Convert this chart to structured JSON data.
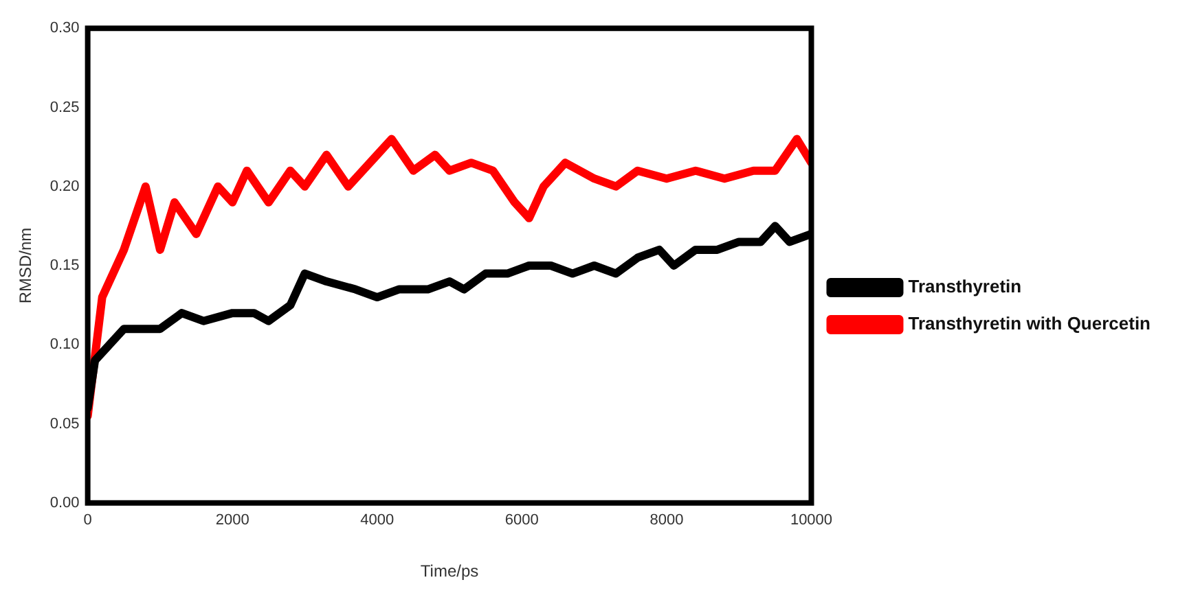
{
  "chart_data": {
    "type": "line",
    "xlabel": "Time/ps",
    "ylabel": "RMSD/nm",
    "xlim": [
      0,
      10000
    ],
    "xticks": [
      0,
      2000,
      4000,
      6000,
      8000,
      10000
    ],
    "ylim": [
      0,
      0.3
    ],
    "yticks": [
      {
        "value": 0,
        "label": "0.00"
      },
      {
        "value": 0.05,
        "label": "0.05"
      },
      {
        "value": 0.1,
        "label": "0.10"
      },
      {
        "value": 0.15,
        "label": "0.15"
      },
      {
        "value": 0.2,
        "label": "0.20"
      },
      {
        "value": 0.25,
        "label": "0.25"
      },
      {
        "value": 0.3,
        "label": "0.30"
      }
    ],
    "grid": false,
    "legend": "right",
    "marker": "none",
    "line_style": "solid",
    "series": [
      {
        "name": "Transthyretin",
        "color": "#000000",
        "x": [
          0,
          100,
          300,
          500,
          800,
          1000,
          1300,
          1600,
          2000,
          2300,
          2500,
          2800,
          3000,
          3300,
          3700,
          4000,
          4300,
          4700,
          5000,
          5200,
          5500,
          5800,
          6100,
          6400,
          6700,
          7000,
          7300,
          7600,
          7900,
          8100,
          8400,
          8700,
          9000,
          9300,
          9500,
          9700,
          10000
        ],
        "values": [
          0.06,
          0.09,
          0.1,
          0.11,
          0.11,
          0.11,
          0.12,
          0.115,
          0.12,
          0.12,
          0.115,
          0.125,
          0.145,
          0.14,
          0.135,
          0.13,
          0.135,
          0.135,
          0.14,
          0.135,
          0.145,
          0.145,
          0.15,
          0.15,
          0.145,
          0.15,
          0.145,
          0.155,
          0.16,
          0.15,
          0.16,
          0.16,
          0.165,
          0.165,
          0.175,
          0.165,
          0.17
        ]
      },
      {
        "name": "Transthyretin with Quercetin",
        "color": "#ff0000",
        "x": [
          0,
          200,
          500,
          800,
          1000,
          1200,
          1500,
          1800,
          2000,
          2200,
          2500,
          2800,
          3000,
          3300,
          3600,
          4000,
          4200,
          4500,
          4800,
          5000,
          5300,
          5600,
          5900,
          6100,
          6300,
          6600,
          7000,
          7300,
          7600,
          8000,
          8400,
          8800,
          9200,
          9500,
          9800,
          10000
        ],
        "values": [
          0.055,
          0.13,
          0.16,
          0.2,
          0.16,
          0.19,
          0.17,
          0.2,
          0.19,
          0.21,
          0.19,
          0.21,
          0.2,
          0.22,
          0.2,
          0.22,
          0.23,
          0.21,
          0.22,
          0.21,
          0.215,
          0.21,
          0.19,
          0.18,
          0.2,
          0.215,
          0.205,
          0.2,
          0.21,
          0.205,
          0.21,
          0.205,
          0.21,
          0.21,
          0.23,
          0.215
        ]
      }
    ]
  }
}
